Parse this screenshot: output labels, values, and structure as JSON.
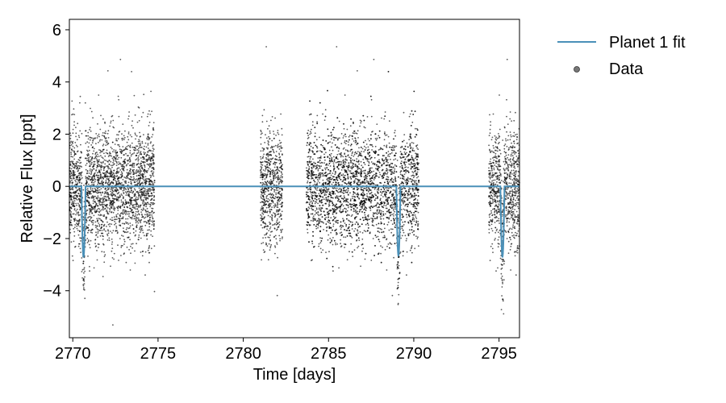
{
  "chart_data": {
    "type": "scatter",
    "title": "",
    "xlabel": "Time [days]",
    "ylabel": "Relative Flux [ppt]",
    "xlim": [
      2769.8,
      2796.2
    ],
    "ylim": [
      -5.8,
      6.4
    ],
    "x_ticks": [
      2770,
      2775,
      2780,
      2785,
      2790,
      2795
    ],
    "y_ticks": [
      -4,
      -2,
      0,
      2,
      4,
      6
    ],
    "x_tick_labels": [
      "2770",
      "2775",
      "2780",
      "2785",
      "2790",
      "2795"
    ],
    "y_tick_labels": [
      "−4",
      "−2",
      "0",
      "2",
      "4",
      "6"
    ],
    "grid": false,
    "legend": {
      "placement": "outside-top-right",
      "entries": [
        {
          "label": "Planet 1 fit",
          "marker": "line",
          "color": "#4a90b8"
        },
        {
          "label": "Data",
          "marker": "dot",
          "color": "#555555"
        }
      ]
    },
    "series": [
      {
        "name": "Planet 1 fit",
        "kind": "line",
        "color": "#4a90b8",
        "baseline": 0,
        "transits": [
          {
            "t": 2770.63,
            "depth": -2.7
          },
          {
            "t": 2789.1,
            "depth": -2.65
          },
          {
            "t": 2795.2,
            "depth": -2.7
          }
        ]
      },
      {
        "name": "Data",
        "kind": "scatter",
        "color": "#000000",
        "segments": [
          {
            "start": 2769.8,
            "end": 2774.8,
            "scatter": 1.1
          },
          {
            "start": 2781.0,
            "end": 2782.3,
            "scatter": 1.1
          },
          {
            "start": 2783.7,
            "end": 2790.3,
            "scatter": 1.1
          },
          {
            "start": 2794.4,
            "end": 2796.2,
            "scatter": 1.1
          }
        ]
      }
    ]
  }
}
